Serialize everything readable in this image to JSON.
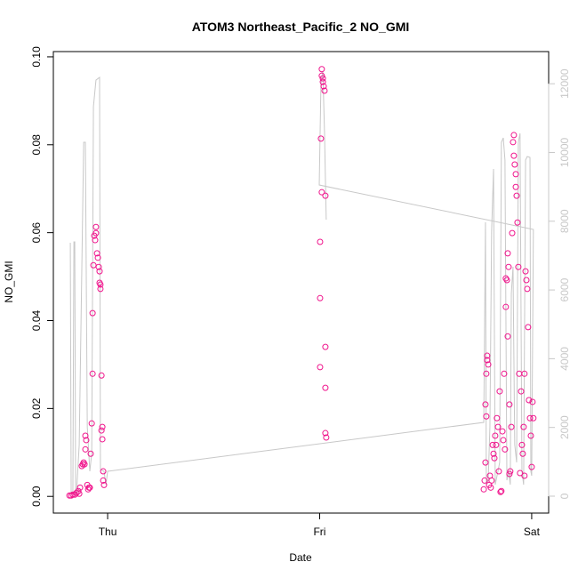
{
  "chart_data": {
    "type": "scatter",
    "title": "ATOM3 Northeast_Pacific_2 NO_GMI",
    "x_label": "Date",
    "y_label": "NO_GMI",
    "xlim": [
      -0.256,
      2.08
    ],
    "xticks": [
      {
        "value": 0,
        "label": "Thu"
      },
      {
        "value": 1,
        "label": "Fri"
      },
      {
        "value": 2,
        "label": "Sat"
      }
    ],
    "ylim": [
      -0.0038,
      0.1012
    ],
    "yticks": [
      {
        "value": 0,
        "label": "0.00"
      },
      {
        "value": 0.02,
        "label": "0.02"
      },
      {
        "value": 0.04,
        "label": "0.04"
      },
      {
        "value": 0.06,
        "label": "0.06"
      },
      {
        "value": 0.08,
        "label": "0.08"
      },
      {
        "value": 0.1,
        "label": "0.10"
      }
    ],
    "y2lim": [
      -492,
      12936
    ],
    "y2ticks": [
      0,
      2000,
      4000,
      6000,
      8000,
      10000,
      12000
    ],
    "series": [
      {
        "type": "line",
        "axis": "y2",
        "color": "#c8c8c8",
        "x": [
          -0.176,
          -0.172,
          -0.164,
          -0.159,
          -0.155,
          -0.151,
          -0.147,
          -0.134,
          -0.113,
          -0.105,
          -0.096,
          -0.084,
          -0.075,
          -0.067,
          -0.055,
          -0.038,
          -0.034,
          -0.017,
          -0.008,
          0.0,
          1.774,
          1.782,
          1.786,
          1.795,
          1.803,
          1.811,
          1.82,
          1.828,
          1.841,
          1.849,
          1.857,
          1.866,
          1.874,
          1.883,
          1.891,
          1.899,
          1.904,
          1.912,
          1.92,
          1.929,
          1.937,
          1.945,
          1.954,
          1.962,
          1.971,
          1.979,
          1.992,
          1.996,
          2.0,
          2.008,
          0.998,
          1.006,
          1.015,
          1.023,
          1.027,
          1.031
        ],
        "values": [
          7373,
          78,
          78,
          7400,
          7400,
          78,
          78,
          1500,
          10296,
          10296,
          2018,
          724,
          1242,
          11331,
          12107,
          12185,
          776,
          724,
          336,
          724,
          2147,
          7968,
          336,
          466,
          2018,
          7709,
          9520,
          336,
          724,
          983,
          10296,
          10426,
          9779,
          466,
          724,
          336,
          5898,
          6674,
          1500,
          983,
          10296,
          10555,
          724,
          336,
          9779,
          9882,
          9856,
          724,
          595,
          7761,
          9054,
          11978,
          12366,
          10555,
          9261,
          8046
        ]
      },
      {
        "type": "scatter",
        "color": "#f0148c",
        "x": [
          -0.18,
          -0.172,
          -0.164,
          -0.155,
          -0.147,
          -0.138,
          -0.134,
          -0.13,
          -0.122,
          -0.117,
          -0.113,
          -0.109,
          -0.105,
          -0.105,
          -0.101,
          -0.096,
          -0.092,
          -0.088,
          -0.084,
          -0.08,
          -0.075,
          -0.071,
          -0.071,
          -0.067,
          -0.063,
          -0.059,
          -0.055,
          -0.055,
          -0.05,
          -0.046,
          -0.042,
          -0.038,
          -0.038,
          -0.034,
          -0.034,
          -0.029,
          -0.029,
          -0.025,
          -0.025,
          -0.021,
          -0.021,
          -0.017,
          1.01,
          1.01,
          1.015,
          1.015,
          1.019,
          1.023,
          1.006,
          1.01,
          1.027,
          1.002,
          1.002,
          1.027,
          1.002,
          1.027,
          1.027,
          1.031,
          1.774,
          1.778,
          1.782,
          1.782,
          1.786,
          1.786,
          1.79,
          1.79,
          1.795,
          1.799,
          1.803,
          1.807,
          1.811,
          1.816,
          1.82,
          1.824,
          1.828,
          1.832,
          1.836,
          1.841,
          1.845,
          1.849,
          1.853,
          1.857,
          1.862,
          1.866,
          1.87,
          1.874,
          1.878,
          1.878,
          1.883,
          1.887,
          1.887,
          1.891,
          1.895,
          1.895,
          1.899,
          1.904,
          1.908,
          1.912,
          1.916,
          1.916,
          1.92,
          1.925,
          1.925,
          1.929,
          1.933,
          1.937,
          1.941,
          1.945,
          1.95,
          1.954,
          1.958,
          1.962,
          1.966,
          1.971,
          1.975,
          1.979,
          1.983,
          1.987,
          1.992,
          1.996,
          2.0,
          2.004,
          2.008,
          1.966
        ],
        "values": [
          0.0002,
          0.0002,
          0.0004,
          0.0004,
          0.0008,
          0.0012,
          0.0006,
          0.002,
          0.0069,
          0.0073,
          0.0077,
          0.0073,
          0.0107,
          0.0138,
          0.0128,
          0.0026,
          0.0016,
          0.002,
          0.002,
          0.0097,
          0.0166,
          0.0279,
          0.0417,
          0.0526,
          0.0593,
          0.0583,
          0.0599,
          0.0613,
          0.0553,
          0.0543,
          0.0522,
          0.0512,
          0.0486,
          0.0482,
          0.0472,
          0.0275,
          0.015,
          0.0158,
          0.013,
          0.0057,
          0.0036,
          0.0026,
          0.0972,
          0.0957,
          0.0951,
          0.0943,
          0.0933,
          0.0923,
          0.0814,
          0.0692,
          0.0684,
          0.0579,
          0.0451,
          0.034,
          0.0294,
          0.0247,
          0.0144,
          0.0134,
          0.0016,
          0.0036,
          0.0077,
          0.0209,
          0.0182,
          0.0279,
          0.032,
          0.031,
          0.03,
          0.0026,
          0.0047,
          0.002,
          0.0036,
          0.0117,
          0.0097,
          0.0087,
          0.0138,
          0.0117,
          0.0178,
          0.0158,
          0.0057,
          0.0239,
          0.001,
          0.0012,
          0.0148,
          0.0128,
          0.0279,
          0.0107,
          0.0431,
          0.0496,
          0.0492,
          0.0553,
          0.0364,
          0.0522,
          0.0209,
          0.0051,
          0.0057,
          0.0158,
          0.0599,
          0.0806,
          0.0822,
          0.0775,
          0.0755,
          0.0733,
          0.0704,
          0.0684,
          0.0623,
          0.0522,
          0.0279,
          0.0053,
          0.0239,
          0.0117,
          0.0097,
          0.0158,
          0.0279,
          0.0512,
          0.0492,
          0.0472,
          0.0385,
          0.0219,
          0.0178,
          0.0138,
          0.0067,
          0.0215,
          0.0178,
          0.0047
        ]
      }
    ]
  }
}
